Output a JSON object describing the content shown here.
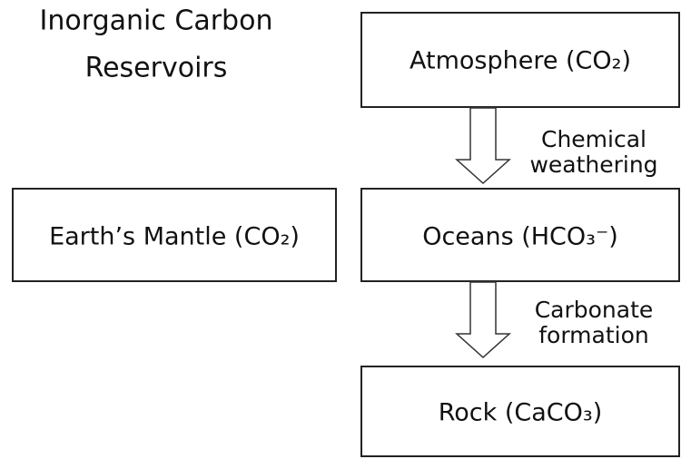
{
  "title": [
    "Inorganic Carbon",
    "Reservoirs"
  ],
  "nodes": [
    {
      "label": "Atmosphere (CO₂)"
    },
    {
      "label": "Earth’s Mantle (CO₂)"
    },
    {
      "label": "Oceans (HCO₃⁻)"
    },
    {
      "label": "Rock (CaCO₃)"
    }
  ],
  "edges": [
    {
      "label": [
        "Chemical",
        "weathering"
      ]
    },
    {
      "label": [
        "Carbonate",
        "formation"
      ]
    }
  ]
}
